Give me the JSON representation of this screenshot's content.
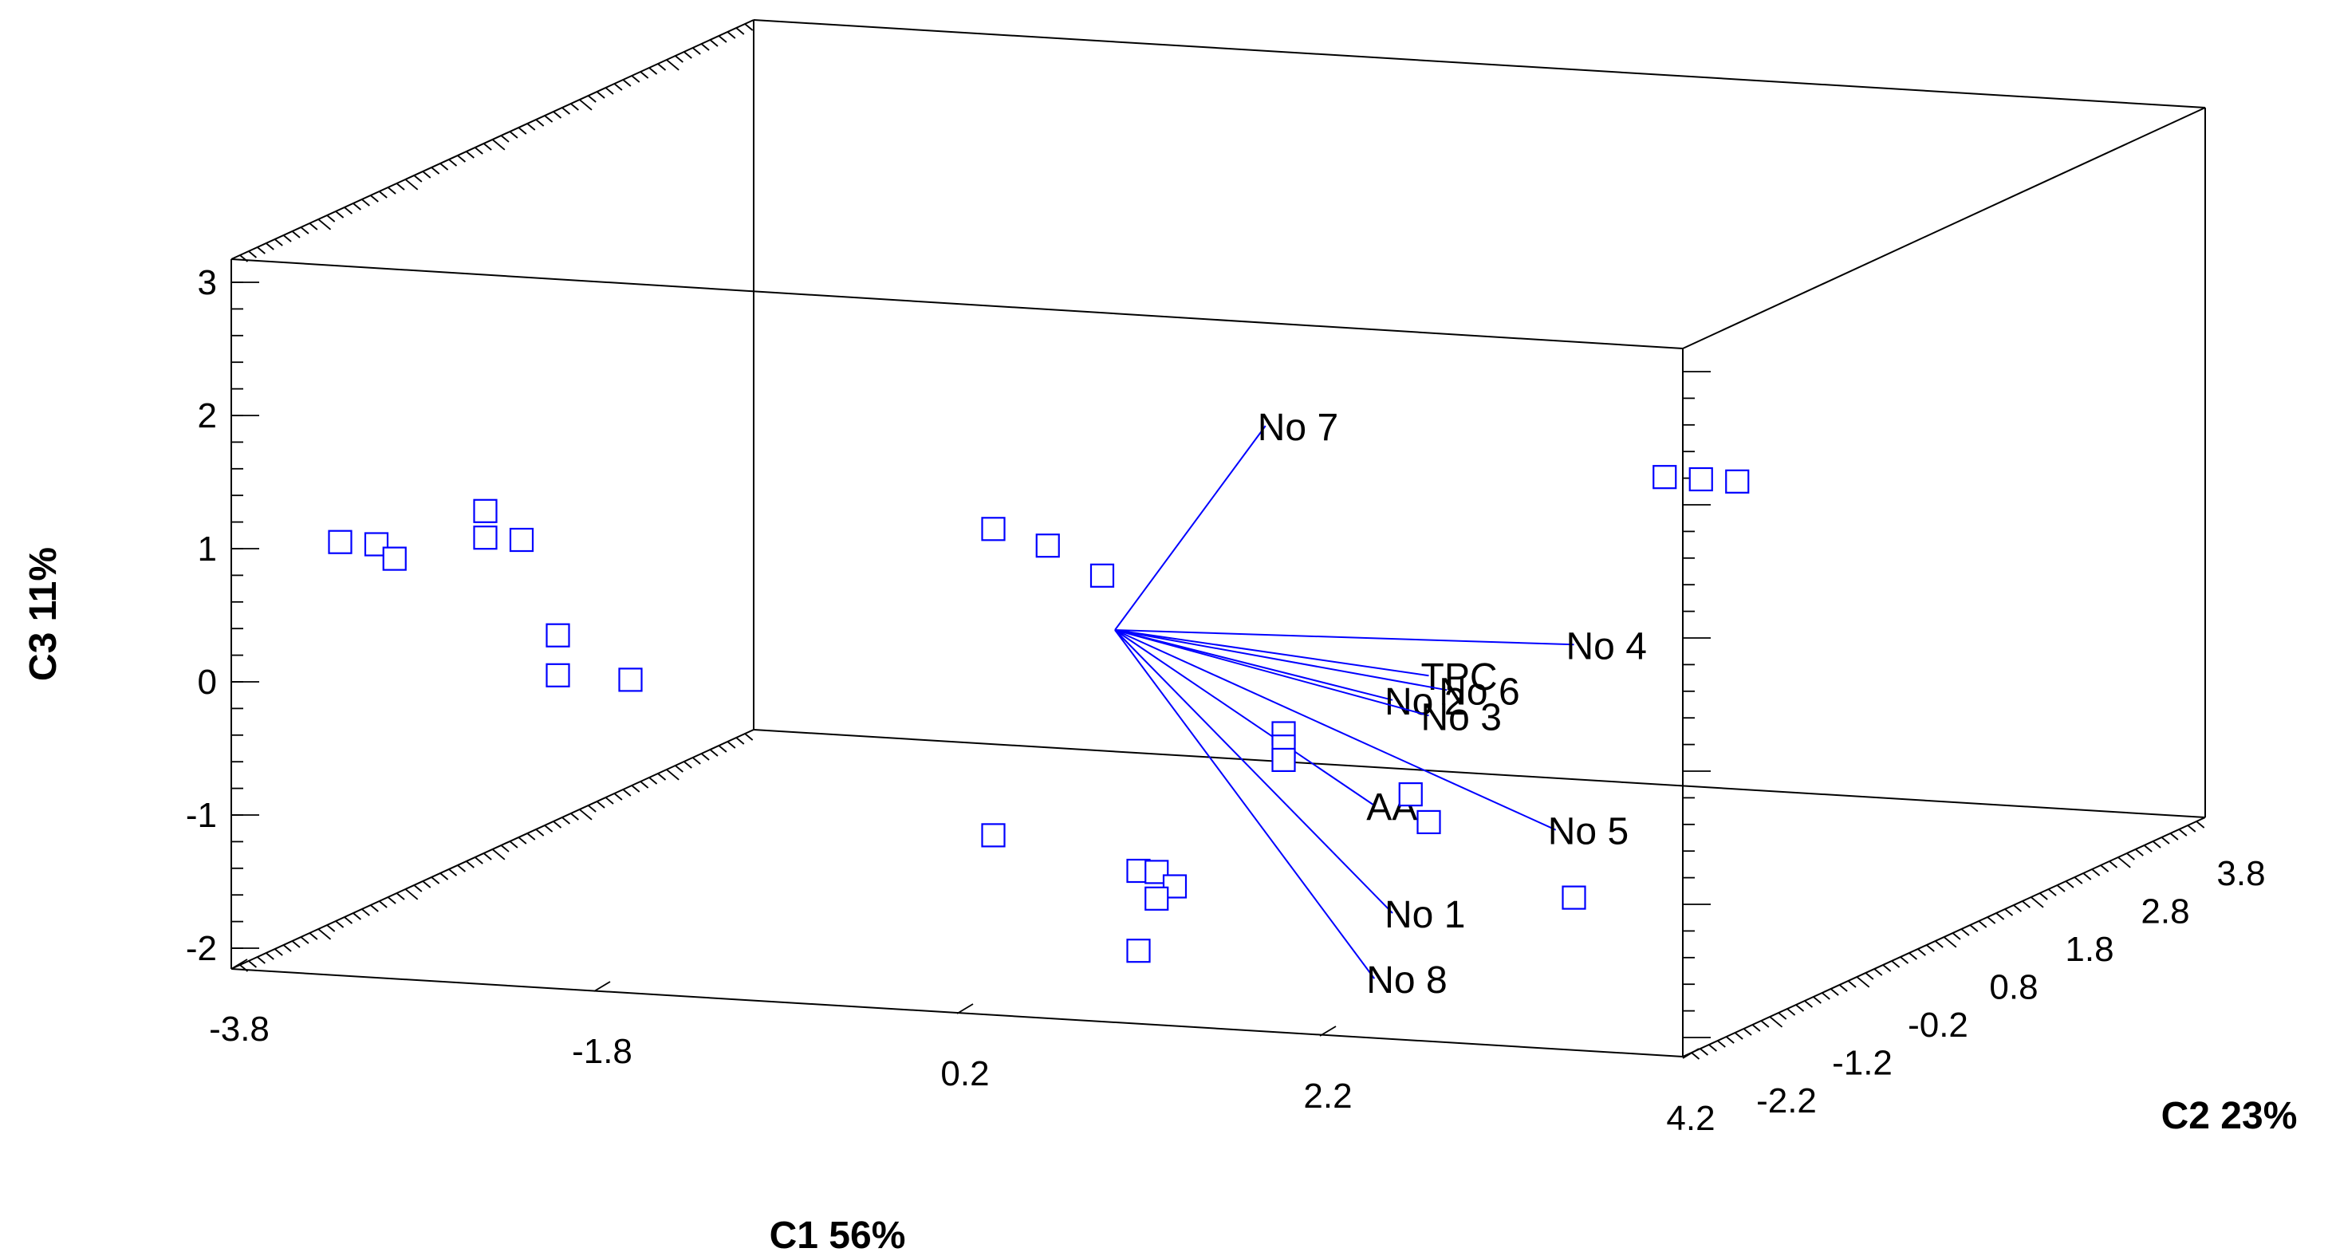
{
  "chart_data": {
    "type": "scatter",
    "subtype": "3d-biplot",
    "title": "",
    "xlabel": "C1 56%",
    "ylabel": "C3 11%",
    "zlabel": "C2 23%",
    "x_tick_labels": [
      "-3.8",
      "-1.8",
      "0.2",
      "2.2",
      "4.2"
    ],
    "y_tick_labels": [
      "3",
      "2",
      "1",
      "0",
      "-1",
      "-2"
    ],
    "depth_tick_labels": [
      "-2.2",
      "-1.2",
      "-0.2",
      "0.8",
      "1.8",
      "2.8",
      "3.8"
    ],
    "grid": false,
    "marker": "square",
    "colors": {
      "points": "#0000ff",
      "vectors": "#0000ff",
      "box": "#000000"
    },
    "vectors": [
      {
        "label": "No 7",
        "c1": 1.9,
        "c3": 2.4
      },
      {
        "label": "No 4",
        "c1": 3.6,
        "c3": 0.9
      },
      {
        "label": "TPC",
        "c1": 2.8,
        "c3": 0.6
      },
      {
        "label": "No 6",
        "c1": 2.9,
        "c3": 0.5
      },
      {
        "label": "No 2",
        "c1": 2.6,
        "c3": 0.4
      },
      {
        "label": "No 3",
        "c1": 2.8,
        "c3": 0.3
      },
      {
        "label": "No 5",
        "c1": 3.5,
        "c3": -0.5
      },
      {
        "label": "AA",
        "c1": 2.5,
        "c3": -0.4
      },
      {
        "label": "No 1",
        "c1": 2.6,
        "c3": -1.2
      },
      {
        "label": "No 8",
        "c1": 2.5,
        "c3": -1.7
      }
    ],
    "scores": [
      {
        "c1": -3.2,
        "c3": 1.1
      },
      {
        "c1": -3.0,
        "c3": 1.1
      },
      {
        "c1": -2.9,
        "c3": 1.0
      },
      {
        "c1": -2.4,
        "c3": 1.4
      },
      {
        "c1": -2.4,
        "c3": 1.2
      },
      {
        "c1": -2.2,
        "c3": 1.2
      },
      {
        "c1": -2.0,
        "c3": 0.5
      },
      {
        "c1": -2.0,
        "c3": 0.2
      },
      {
        "c1": -1.6,
        "c3": 0.2
      },
      {
        "c1": 0.4,
        "c3": 1.5
      },
      {
        "c1": 0.7,
        "c3": 1.4
      },
      {
        "c1": 1.0,
        "c3": 1.2
      },
      {
        "c1": 2.0,
        "c3": 0.1
      },
      {
        "c1": 2.0,
        "c3": 0.0
      },
      {
        "c1": 2.0,
        "c3": -0.1
      },
      {
        "c1": 2.7,
        "c3": -0.3
      },
      {
        "c1": 2.8,
        "c3": -0.5
      },
      {
        "c1": 3.6,
        "c3": -1.0
      },
      {
        "c1": 0.4,
        "c3": -0.8
      },
      {
        "c1": 1.2,
        "c3": -1.0
      },
      {
        "c1": 1.3,
        "c3": -1.0
      },
      {
        "c1": 1.4,
        "c3": -1.1
      },
      {
        "c1": 1.3,
        "c3": -1.2
      },
      {
        "c1": 1.2,
        "c3": -1.6
      },
      {
        "c1": 4.1,
        "c3": 2.2
      },
      {
        "c1": 4.3,
        "c3": 2.2
      },
      {
        "c1": 4.5,
        "c3": 2.2
      }
    ]
  }
}
